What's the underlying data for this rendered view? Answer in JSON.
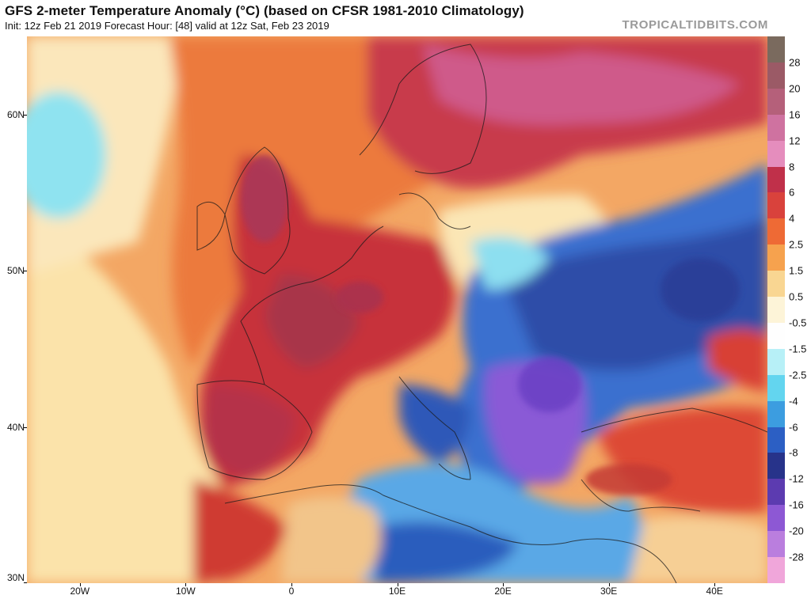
{
  "header": {
    "title": "GFS 2-meter Temperature Anomaly (°C) (based on CFSR 1981-2010 Climatology)",
    "subtitle": "Init: 12z Feb 21 2019   Forecast Hour: [48]   valid at 12z Sat, Feb 23 2019",
    "brand": "TROPICALTIDBITS.COM"
  },
  "map": {
    "lat_labels": [
      "60N",
      "50N",
      "40N",
      "30N"
    ],
    "lon_labels": [
      "20W",
      "10W",
      "0",
      "10E",
      "20E",
      "30E",
      "40E"
    ],
    "lat_values": [
      60,
      50,
      40,
      30
    ],
    "lon_values": [
      -20,
      -10,
      0,
      10,
      20,
      30,
      40
    ],
    "extent": {
      "lon_min": -25,
      "lon_max": 45,
      "lat_min": 30,
      "lat_max": 65
    }
  },
  "colorbar": {
    "labels": [
      "28",
      "20",
      "16",
      "12",
      "8",
      "6",
      "4",
      "2.5",
      "1.5",
      "0.5",
      "-0.5",
      "-1.5",
      "-2.5",
      "-4",
      "-6",
      "-8",
      "-12",
      "-16",
      "-20",
      "-28"
    ],
    "colors": [
      "#7a6a5e",
      "#9b5a66",
      "#b5607a",
      "#cf72a0",
      "#e58dbd",
      "#c0304a",
      "#d9423c",
      "#ee6a35",
      "#f6a24e",
      "#f9d692",
      "#fdf4d8",
      "#fefefe",
      "#b7f0f7",
      "#63d5ef",
      "#3c9de0",
      "#2c5fc4",
      "#27338a",
      "#5c3bb0",
      "#8d58d4",
      "#ba7ede",
      "#f0a6da"
    ]
  }
}
